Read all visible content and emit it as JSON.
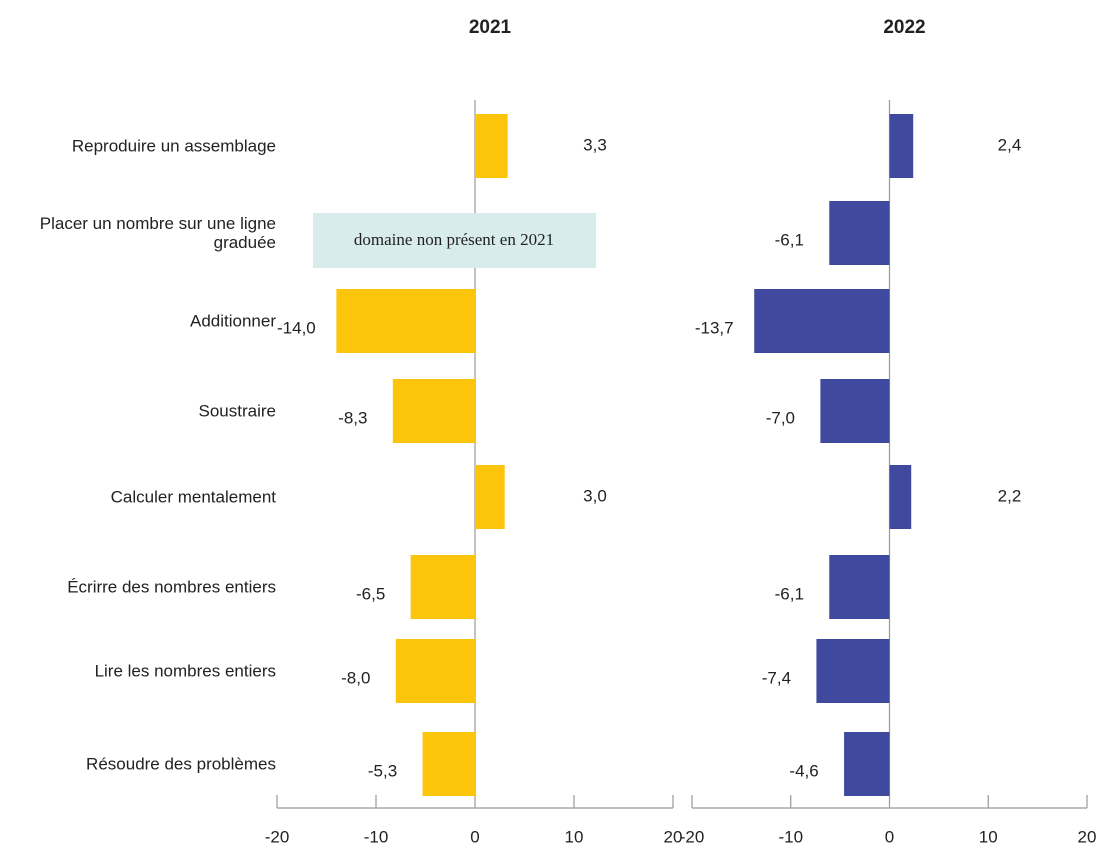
{
  "chart_data": [
    {
      "type": "bar",
      "orientation": "horizontal",
      "title": "2021",
      "categories": [
        "Reproduire un assemblage",
        "Placer un nombre sur une ligne graduée",
        "Additionner",
        "Soustraire",
        "Calculer mentalement",
        "Écrirre des nombres entiers",
        "Lire les nombres entiers",
        "Résoudre des problèmes"
      ],
      "values": [
        3.3,
        null,
        -14.0,
        -8.3,
        3.0,
        -6.5,
        -8.0,
        -5.3
      ],
      "value_labels": [
        "3,3",
        null,
        "-14,0",
        "-8,3",
        "3,0",
        "-6,5",
        "-8,0",
        "-5,3"
      ],
      "color": "#fcc40b",
      "xlim": [
        -20,
        20
      ],
      "xticks": [
        -20,
        -10,
        0,
        10,
        20
      ],
      "annotation": "domaine non présent en 2021"
    },
    {
      "type": "bar",
      "orientation": "horizontal",
      "title": "2022",
      "values": [
        2.4,
        -6.1,
        -13.7,
        -7.0,
        2.2,
        -6.1,
        -7.4,
        -4.6
      ],
      "value_labels": [
        "2,4",
        "-6,1",
        "-13,7",
        "-7,0",
        "2,2",
        "-6,1",
        "-7,4",
        "-4,6"
      ],
      "color": "#3f4a9e",
      "xlim": [
        -20,
        20
      ],
      "xticks": [
        -20,
        -10,
        0,
        10,
        20
      ]
    }
  ]
}
